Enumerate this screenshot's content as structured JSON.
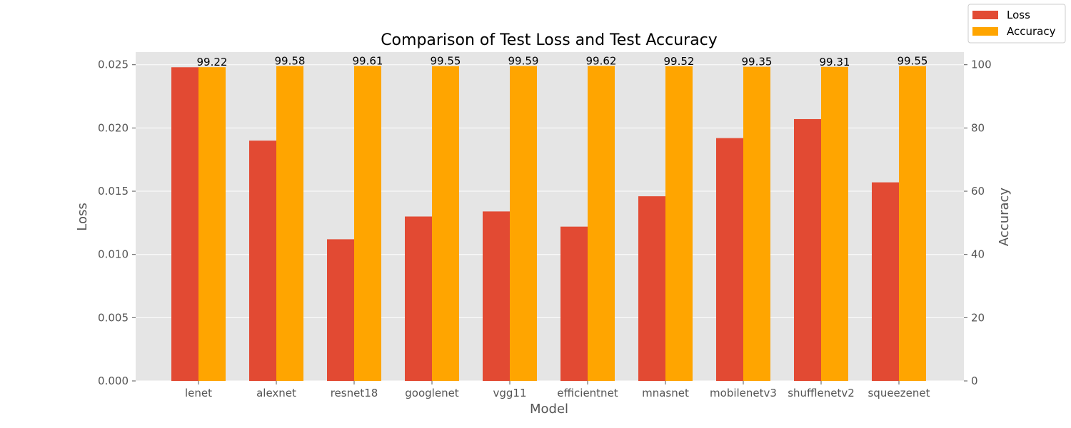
{
  "chart_data": {
    "type": "bar",
    "title": "Comparison of Test Loss and Test Accuracy",
    "xlabel": "Model",
    "ylabel": "Loss",
    "y2label": "Accuracy",
    "categories": [
      "lenet",
      "alexnet",
      "resnet18",
      "googlenet",
      "vgg11",
      "efficientnet",
      "mnasnet",
      "mobilenetv3",
      "shufflenetv2",
      "squeezenet"
    ],
    "series": [
      {
        "name": "Loss",
        "axis": "left",
        "color": "#E24A33",
        "values": [
          0.0248,
          0.019,
          0.0112,
          0.013,
          0.0134,
          0.0122,
          0.0146,
          0.0192,
          0.0207,
          0.0157
        ]
      },
      {
        "name": "Accuracy",
        "axis": "right",
        "color": "#FFA500",
        "values": [
          99.22,
          99.58,
          99.61,
          99.55,
          99.59,
          99.62,
          99.52,
          99.35,
          99.31,
          99.55
        ],
        "data_labels": [
          "99.22",
          "99.58",
          "99.61",
          "99.55",
          "99.59",
          "99.62",
          "99.52",
          "99.35",
          "99.31",
          "99.55"
        ]
      }
    ],
    "ylim": [
      0,
      0.026
    ],
    "y2lim": [
      0,
      104
    ],
    "yticks": [
      "0.000",
      "0.005",
      "0.010",
      "0.015",
      "0.020",
      "0.025"
    ],
    "y2ticks": [
      "0",
      "20",
      "40",
      "60",
      "80",
      "100"
    ],
    "grid": true,
    "plot_background": "#E5E5E5",
    "legend_position": "top-right, outside plot"
  }
}
